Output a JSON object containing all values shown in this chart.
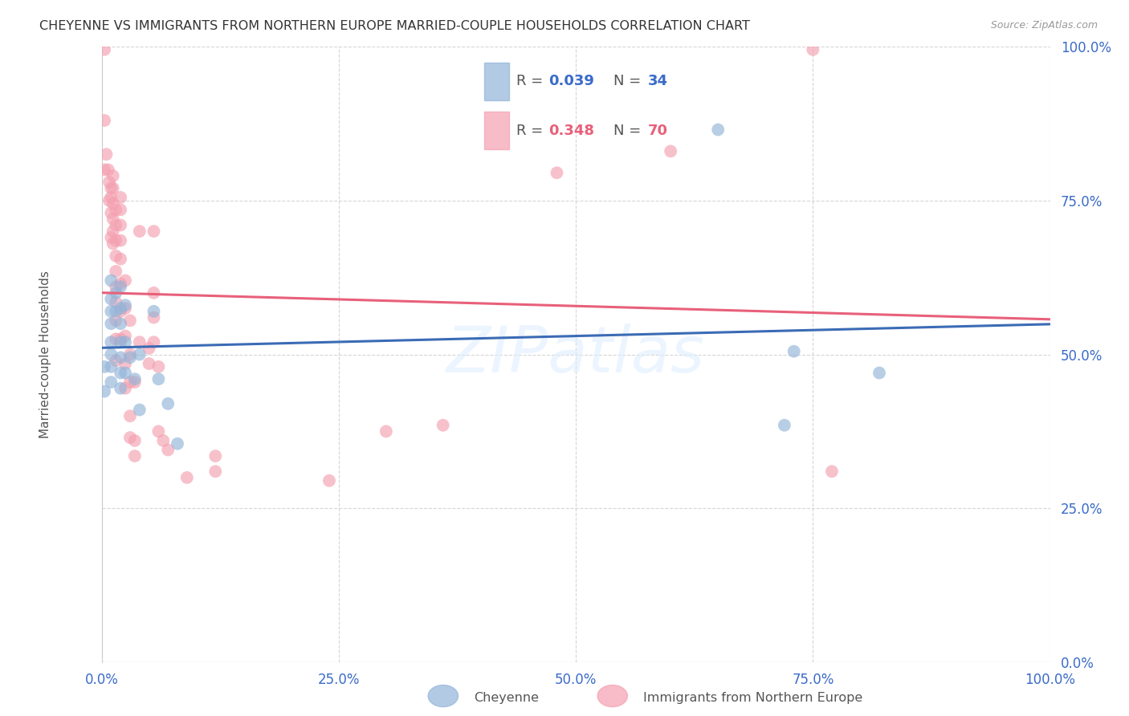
{
  "title": "CHEYENNE VS IMMIGRANTS FROM NORTHERN EUROPE MARRIED-COUPLE HOUSEHOLDS CORRELATION CHART",
  "source": "Source: ZipAtlas.com",
  "ylabel": "Married-couple Households",
  "blue_R": 0.039,
  "blue_N": 34,
  "pink_R": 0.348,
  "pink_N": 70,
  "blue_color": "#92B4D8",
  "pink_color": "#F4A0B0",
  "blue_line_color": "#3B6BB5",
  "pink_line_color": "#E8607A",
  "dashed_line_color": "#E8A0B0",
  "watermark": "ZIPatlas",
  "ytick_values": [
    0.0,
    0.25,
    0.5,
    0.75,
    1.0
  ],
  "xtick_values": [
    0.0,
    0.25,
    0.5,
    0.75,
    1.0
  ],
  "blue_points": [
    [
      0.003,
      0.48
    ],
    [
      0.003,
      0.44
    ],
    [
      0.01,
      0.62
    ],
    [
      0.01,
      0.59
    ],
    [
      0.01,
      0.57
    ],
    [
      0.01,
      0.55
    ],
    [
      0.01,
      0.52
    ],
    [
      0.01,
      0.5
    ],
    [
      0.01,
      0.48
    ],
    [
      0.01,
      0.455
    ],
    [
      0.015,
      0.6
    ],
    [
      0.015,
      0.57
    ],
    [
      0.02,
      0.61
    ],
    [
      0.02,
      0.575
    ],
    [
      0.02,
      0.55
    ],
    [
      0.02,
      0.52
    ],
    [
      0.02,
      0.495
    ],
    [
      0.02,
      0.47
    ],
    [
      0.02,
      0.445
    ],
    [
      0.025,
      0.58
    ],
    [
      0.025,
      0.52
    ],
    [
      0.025,
      0.47
    ],
    [
      0.03,
      0.495
    ],
    [
      0.035,
      0.46
    ],
    [
      0.04,
      0.5
    ],
    [
      0.04,
      0.41
    ],
    [
      0.055,
      0.57
    ],
    [
      0.06,
      0.46
    ],
    [
      0.07,
      0.42
    ],
    [
      0.08,
      0.355
    ],
    [
      0.65,
      0.865
    ],
    [
      0.73,
      0.505
    ],
    [
      0.82,
      0.47
    ],
    [
      0.72,
      0.385
    ]
  ],
  "pink_points": [
    [
      0.003,
      0.995
    ],
    [
      0.003,
      0.8
    ],
    [
      0.005,
      0.825
    ],
    [
      0.007,
      0.8
    ],
    [
      0.008,
      0.78
    ],
    [
      0.008,
      0.75
    ],
    [
      0.01,
      0.77
    ],
    [
      0.01,
      0.755
    ],
    [
      0.01,
      0.73
    ],
    [
      0.01,
      0.69
    ],
    [
      0.012,
      0.79
    ],
    [
      0.012,
      0.77
    ],
    [
      0.012,
      0.745
    ],
    [
      0.012,
      0.72
    ],
    [
      0.012,
      0.7
    ],
    [
      0.012,
      0.68
    ],
    [
      0.015,
      0.735
    ],
    [
      0.015,
      0.71
    ],
    [
      0.015,
      0.685
    ],
    [
      0.015,
      0.66
    ],
    [
      0.015,
      0.635
    ],
    [
      0.015,
      0.61
    ],
    [
      0.015,
      0.585
    ],
    [
      0.015,
      0.555
    ],
    [
      0.015,
      0.525
    ],
    [
      0.015,
      0.49
    ],
    [
      0.02,
      0.755
    ],
    [
      0.02,
      0.735
    ],
    [
      0.02,
      0.71
    ],
    [
      0.02,
      0.685
    ],
    [
      0.02,
      0.655
    ],
    [
      0.02,
      0.615
    ],
    [
      0.02,
      0.57
    ],
    [
      0.02,
      0.525
    ],
    [
      0.025,
      0.62
    ],
    [
      0.025,
      0.575
    ],
    [
      0.025,
      0.53
    ],
    [
      0.025,
      0.485
    ],
    [
      0.025,
      0.445
    ],
    [
      0.03,
      0.555
    ],
    [
      0.03,
      0.5
    ],
    [
      0.03,
      0.455
    ],
    [
      0.03,
      0.4
    ],
    [
      0.03,
      0.365
    ],
    [
      0.035,
      0.455
    ],
    [
      0.035,
      0.36
    ],
    [
      0.035,
      0.335
    ],
    [
      0.04,
      0.7
    ],
    [
      0.04,
      0.52
    ],
    [
      0.05,
      0.51
    ],
    [
      0.05,
      0.485
    ],
    [
      0.055,
      0.7
    ],
    [
      0.055,
      0.6
    ],
    [
      0.055,
      0.56
    ],
    [
      0.055,
      0.52
    ],
    [
      0.06,
      0.48
    ],
    [
      0.06,
      0.375
    ],
    [
      0.065,
      0.36
    ],
    [
      0.07,
      0.345
    ],
    [
      0.09,
      0.3
    ],
    [
      0.12,
      0.31
    ],
    [
      0.12,
      0.335
    ],
    [
      0.24,
      0.295
    ],
    [
      0.3,
      0.375
    ],
    [
      0.36,
      0.385
    ],
    [
      0.48,
      0.795
    ],
    [
      0.6,
      0.83
    ],
    [
      0.75,
      0.995
    ],
    [
      0.77,
      0.31
    ],
    [
      0.003,
      0.88
    ]
  ]
}
